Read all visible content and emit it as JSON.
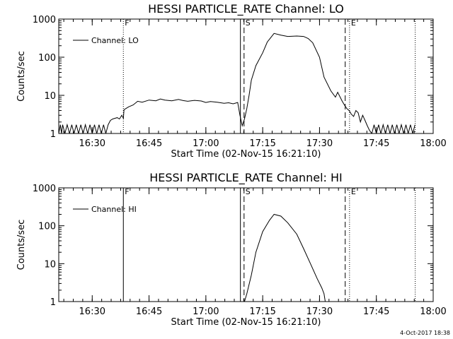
{
  "footer_timestamp": "4-Oct-2017 18:38",
  "chart_data": [
    {
      "type": "line",
      "title": "HESSI PARTICLE_RATE Channel: LO",
      "xlabel": "Start Time (02-Nov-15 16:21:10)",
      "ylabel": "Counts/sec",
      "yscale": "log",
      "ylim": [
        1,
        1000
      ],
      "xlim": [
        16.3528,
        18.0
      ],
      "xticks": [
        {
          "label": "16:30",
          "value": 16.5
        },
        {
          "label": "16:45",
          "value": 16.75
        },
        {
          "label": "17:00",
          "value": 17.0
        },
        {
          "label": "17:15",
          "value": 17.25
        },
        {
          "label": "17:30",
          "value": 17.5
        },
        {
          "label": "17:45",
          "value": 17.75
        },
        {
          "label": "18:00",
          "value": 18.0
        }
      ],
      "yticks": [
        {
          "label": "1",
          "value": 1
        },
        {
          "label": "10",
          "value": 10
        },
        {
          "label": "100",
          "value": 100
        },
        {
          "label": "1000",
          "value": 1000
        }
      ],
      "legend": {
        "position": "top-left",
        "entries": [
          "Channel: LO"
        ]
      },
      "markers": [
        {
          "label": "F",
          "x": 16.637,
          "style": "dotted"
        },
        {
          "label": "",
          "x": 17.152,
          "style": "solid"
        },
        {
          "label": "S",
          "x": 17.168,
          "style": "dashed"
        },
        {
          "label": "",
          "x": 17.613,
          "style": "dashed"
        },
        {
          "label": "E",
          "x": 17.632,
          "style": "dotted"
        },
        {
          "label": "",
          "x": 17.921,
          "style": "dotted"
        }
      ],
      "series": [
        {
          "name": "Channel: LO",
          "x": [
            16.3528,
            16.36,
            16.365,
            16.37,
            16.38,
            16.39,
            16.4,
            16.41,
            16.42,
            16.43,
            16.44,
            16.45,
            16.46,
            16.47,
            16.48,
            16.49,
            16.5,
            16.51,
            16.52,
            16.53,
            16.54,
            16.55,
            16.56,
            16.57,
            16.58,
            16.59,
            16.6,
            16.61,
            16.62,
            16.63,
            16.637,
            16.64,
            16.66,
            16.68,
            16.7,
            16.72,
            16.75,
            16.78,
            16.8,
            16.82,
            16.85,
            16.88,
            16.9,
            16.92,
            16.95,
            16.98,
            17.0,
            17.02,
            17.05,
            17.08,
            17.1,
            17.12,
            17.14,
            17.15,
            17.16,
            17.17,
            17.18,
            17.19,
            17.2,
            17.22,
            17.25,
            17.27,
            17.3,
            17.33,
            17.36,
            17.4,
            17.43,
            17.45,
            17.47,
            17.5,
            17.52,
            17.55,
            17.57,
            17.58,
            17.6,
            17.61,
            17.62,
            17.63,
            17.64,
            17.65,
            17.66,
            17.67,
            17.68,
            17.69,
            17.7,
            17.71,
            17.72,
            17.73,
            17.74,
            17.75,
            17.76,
            17.77,
            17.78,
            17.79,
            17.8,
            17.81,
            17.82,
            17.83,
            17.84,
            17.85,
            17.86,
            17.87,
            17.88,
            17.89,
            17.9,
            17.91,
            17.92
          ],
          "y": [
            1,
            1.7,
            1,
            1.7,
            1,
            1.7,
            1,
            1.7,
            1,
            1.7,
            1,
            1.7,
            1,
            1.7,
            1,
            1.7,
            1,
            1.7,
            1,
            1.7,
            1,
            1.7,
            1,
            1.7,
            2.2,
            2.4,
            2.5,
            2.6,
            2.4,
            3.0,
            2.5,
            4.2,
            5.0,
            5.6,
            7.0,
            6.6,
            7.5,
            7.2,
            8.0,
            7.5,
            7.2,
            7.8,
            7.3,
            7.0,
            7.4,
            7.1,
            6.5,
            6.9,
            6.6,
            6.2,
            6.4,
            6.0,
            6.5,
            3.0,
            1.6,
            2.4,
            4.5,
            10,
            25,
            60,
            130,
            250,
            420,
            380,
            350,
            360,
            350,
            310,
            240,
            100,
            30,
            13,
            9,
            12,
            7,
            5.5,
            4.5,
            4.0,
            3.2,
            2.8,
            4.0,
            3.5,
            2.0,
            3.0,
            2.2,
            1.6,
            1.2,
            1,
            1.7,
            1,
            1.7,
            1,
            1.7,
            1,
            1.7,
            1,
            1.7,
            1,
            1.7,
            1,
            1.7,
            1,
            1.7,
            1,
            1.7,
            1,
            1.7
          ]
        }
      ]
    },
    {
      "type": "line",
      "title": "HESSI PARTICLE_RATE Channel: HI",
      "xlabel": "Start Time (02-Nov-15 16:21:10)",
      "ylabel": "Counts/sec",
      "yscale": "log",
      "ylim": [
        1,
        1000
      ],
      "xlim": [
        16.3528,
        18.0
      ],
      "xticks": [
        {
          "label": "16:30",
          "value": 16.5
        },
        {
          "label": "16:45",
          "value": 16.75
        },
        {
          "label": "17:00",
          "value": 17.0
        },
        {
          "label": "17:15",
          "value": 17.25
        },
        {
          "label": "17:30",
          "value": 17.5
        },
        {
          "label": "17:45",
          "value": 17.75
        },
        {
          "label": "18:00",
          "value": 18.0
        }
      ],
      "yticks": [
        {
          "label": "1",
          "value": 1
        },
        {
          "label": "10",
          "value": 10
        },
        {
          "label": "100",
          "value": 100
        },
        {
          "label": "1000",
          "value": 1000
        }
      ],
      "legend": {
        "position": "top-left",
        "entries": [
          "Channel: HI"
        ]
      },
      "markers": [
        {
          "label": "F",
          "x": 16.637,
          "style": "solid"
        },
        {
          "label": "",
          "x": 17.152,
          "style": "solid"
        },
        {
          "label": "S",
          "x": 17.168,
          "style": "dashed"
        },
        {
          "label": "",
          "x": 17.613,
          "style": "dashed"
        },
        {
          "label": "E",
          "x": 17.632,
          "style": "dotted"
        },
        {
          "label": "",
          "x": 17.921,
          "style": "dotted"
        }
      ],
      "series": [
        {
          "name": "Channel: HI",
          "x": [
            17.17,
            17.18,
            17.2,
            17.22,
            17.25,
            17.28,
            17.3,
            17.33,
            17.36,
            17.4,
            17.43,
            17.46,
            17.49,
            17.51,
            17.52,
            17.525
          ],
          "y": [
            1.0,
            1.6,
            5,
            20,
            70,
            140,
            200,
            180,
            120,
            60,
            25,
            10,
            4,
            2.3,
            1.6,
            1.0
          ]
        }
      ]
    }
  ]
}
